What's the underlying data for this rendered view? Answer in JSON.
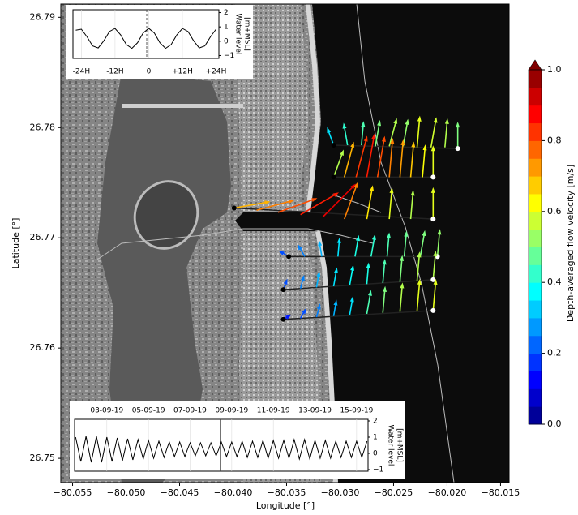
{
  "chart_data": [
    {
      "type": "vector",
      "xlabel": "Longitude [°]",
      "ylabel": "Latitude [°]",
      "xlim": [
        -80.0561,
        -80.0142
      ],
      "ylim": [
        26.7478,
        26.7912
      ],
      "xticks": [
        {
          "value": -80.055,
          "label": "−80.055"
        },
        {
          "value": -80.05,
          "label": "−80.050"
        },
        {
          "value": -80.045,
          "label": "−80.045"
        },
        {
          "value": -80.04,
          "label": "−80.040"
        },
        {
          "value": -80.035,
          "label": "−80.035"
        },
        {
          "value": -80.03,
          "label": "−80.030"
        },
        {
          "value": -80.025,
          "label": "−80.025"
        },
        {
          "value": -80.02,
          "label": "−80.020"
        },
        {
          "value": -80.015,
          "label": "−80.015"
        }
      ],
      "yticks": [
        26.75,
        26.76,
        26.77,
        26.78,
        26.79
      ],
      "colorbar": {
        "label": "Depth-averaged flow velocity [m/s]",
        "cmap": "jet",
        "lim": [
          0,
          1
        ],
        "ticks": [
          {
            "value": 0,
            "label": "0.0"
          },
          0.2,
          0.4,
          0.6,
          0.8,
          {
            "value": 1,
            "label": "1.0"
          }
        ]
      },
      "series": [
        {
          "x": [
            -80.0306,
            -80.0293,
            -80.028,
            -80.0267,
            -80.0254,
            -80.0241,
            -80.0228,
            -80.0215,
            -80.0202,
            -80.019
          ],
          "y": [
            26.7784,
            26.7784,
            26.7784,
            26.7783,
            26.7783,
            26.7783,
            26.7782,
            26.7782,
            26.7782,
            26.7781
          ],
          "values": [
            0.35,
            0.42,
            0.45,
            0.5,
            0.55,
            0.52,
            0.6,
            0.58,
            0.55,
            0.5
          ],
          "direction": [
            340,
            350,
            5,
            10,
            15,
            10,
            5,
            10,
            5,
            0
          ]
        },
        {
          "x": [
            -80.0306,
            -80.0296,
            -80.0285,
            -80.0275,
            -80.0265,
            -80.0254,
            -80.0244,
            -80.0234,
            -80.0223,
            -80.0213
          ],
          "y": [
            26.7755,
            26.7755,
            26.7755,
            26.7755,
            26.7755,
            26.7755,
            26.7755,
            26.7755,
            26.7755,
            26.7755
          ],
          "values": [
            0.55,
            0.7,
            0.82,
            0.85,
            0.8,
            0.75,
            0.72,
            0.68,
            0.62,
            0.6
          ],
          "direction": [
            20,
            15,
            15,
            10,
            10,
            5,
            5,
            5,
            5,
            0
          ]
        },
        {
          "x": [
            -80.0399,
            -80.0378,
            -80.0358,
            -80.0337,
            -80.0316,
            -80.0296,
            -80.0275,
            -80.0254,
            -80.0234,
            -80.0213
          ],
          "y": [
            26.7727,
            26.7725,
            26.7723,
            26.7721,
            26.7719,
            26.7717,
            26.7717,
            26.7717,
            26.7717,
            26.7717
          ],
          "values": [
            0.7,
            0.75,
            0.8,
            0.85,
            0.9,
            0.75,
            0.65,
            0.6,
            0.55,
            0.6
          ],
          "direction": [
            80,
            75,
            70,
            60,
            45,
            20,
            10,
            5,
            5,
            0
          ]
        },
        {
          "x": [
            -80.0348,
            -80.0333,
            -80.0317,
            -80.0302,
            -80.0286,
            -80.0271,
            -80.0256,
            -80.024,
            -80.0225,
            -80.0209
          ],
          "y": [
            26.7683,
            26.7683,
            26.7683,
            26.7683,
            26.7683,
            26.7683,
            26.7683,
            26.7683,
            26.7683,
            26.7683
          ],
          "values": [
            0.2,
            0.25,
            0.3,
            0.35,
            0.4,
            0.42,
            0.45,
            0.48,
            0.5,
            0.52
          ],
          "direction": [
            300,
            330,
            350,
            5,
            10,
            10,
            5,
            5,
            10,
            5
          ]
        },
        {
          "x": [
            -80.0353,
            -80.0337,
            -80.0322,
            -80.0306,
            -80.0291,
            -80.0275,
            -80.026,
            -80.0244,
            -80.0228,
            -80.0213
          ],
          "y": [
            26.7653,
            26.7654,
            26.7655,
            26.7656,
            26.7657,
            26.7658,
            26.7659,
            26.766,
            26.7661,
            26.7662
          ],
          "values": [
            0.2,
            0.25,
            0.3,
            0.35,
            0.38,
            0.4,
            0.45,
            0.5,
            0.55,
            0.55
          ],
          "direction": [
            20,
            15,
            10,
            10,
            10,
            5,
            5,
            5,
            5,
            5
          ]
        },
        {
          "x": [
            -80.0353,
            -80.0337,
            -80.0322,
            -80.0306,
            -80.0291,
            -80.0275,
            -80.026,
            -80.0244,
            -80.0228,
            -80.0213
          ],
          "y": [
            26.7626,
            26.7627,
            26.7628,
            26.7629,
            26.763,
            26.7631,
            26.7632,
            26.7633,
            26.7634,
            26.7634
          ],
          "values": [
            0.15,
            0.2,
            0.25,
            0.3,
            0.35,
            0.45,
            0.5,
            0.55,
            0.6,
            0.6
          ],
          "direction": [
            60,
            30,
            15,
            10,
            10,
            10,
            5,
            5,
            5,
            5
          ]
        }
      ]
    },
    {
      "type": "line",
      "ylabel": [
        "Water level",
        "[m+MSL]"
      ],
      "xlim": [
        -27,
        25
      ],
      "ylim": [
        -1.2,
        2.2
      ],
      "xticks": [
        {
          "value": -24,
          "label": "-24H"
        },
        {
          "value": -12,
          "label": "-12H"
        },
        0,
        {
          "value": 12,
          "label": "+12H"
        },
        {
          "value": 24,
          "label": "+24H"
        }
      ],
      "yticks": [
        {
          "value": -1,
          "label": "−1"
        },
        0,
        1,
        2
      ],
      "x": [
        -26,
        -24,
        -22,
        -20,
        -18,
        -16,
        -14,
        -12,
        -10,
        -8,
        -6,
        -4,
        -2,
        0,
        2,
        4,
        6,
        8,
        10,
        12,
        14,
        16,
        18,
        20,
        22,
        24
      ],
      "values": [
        0.77,
        0.84,
        0.31,
        -0.33,
        -0.47,
        0.03,
        0.68,
        0.89,
        0.44,
        -0.23,
        -0.5,
        -0.11,
        0.57,
        0.9,
        0.57,
        -0.11,
        -0.5,
        -0.23,
        0.44,
        0.89,
        0.68,
        0.03,
        -0.47,
        -0.33,
        0.31,
        0.84
      ],
      "color": "#000000"
    },
    {
      "type": "line",
      "ylabel": [
        "Water level",
        "[m+MSL]"
      ],
      "xlim": [
        1.45,
        15.55
      ],
      "ylim": [
        -1.1,
        2.1
      ],
      "xticks": [
        {
          "value": 3,
          "label": "03-09-19"
        },
        {
          "value": 5,
          "label": "05-09-19"
        },
        {
          "value": 7,
          "label": "07-09-19"
        },
        {
          "value": 9,
          "label": "09-09-19"
        },
        {
          "value": 11,
          "label": "11-09-19"
        },
        {
          "value": 13,
          "label": "13-09-19"
        },
        {
          "value": 15,
          "label": "15-09-19"
        }
      ],
      "yticks": [
        {
          "value": -1,
          "label": "−1"
        },
        0,
        1,
        2
      ],
      "x": [
        1.5,
        1.625,
        1.75,
        1.875,
        2,
        2.125,
        2.25,
        2.375,
        2.5,
        2.625,
        2.75,
        2.875,
        3,
        3.125,
        3.25,
        3.375,
        3.5,
        3.625,
        3.75,
        3.875,
        4,
        4.125,
        4.25,
        4.375,
        4.5,
        4.625,
        4.75,
        4.875,
        5,
        5.125,
        5.25,
        5.375,
        5.5,
        5.625,
        5.75,
        5.875,
        6,
        6.125,
        6.25,
        6.375,
        6.5,
        6.625,
        6.75,
        6.875,
        7,
        7.125,
        7.25,
        7.375,
        7.5,
        7.625,
        7.75,
        7.875,
        8,
        8.125,
        8.25,
        8.375,
        8.5,
        8.625,
        8.75,
        8.875,
        9,
        9.125,
        9.25,
        9.375,
        9.5,
        9.625,
        9.75,
        9.875,
        10,
        10.125,
        10.25,
        10.375,
        10.5,
        10.625,
        10.75,
        10.875,
        11,
        11.125,
        11.25,
        11.375,
        11.5,
        11.625,
        11.75,
        11.875,
        12,
        12.125,
        12.25,
        12.375,
        12.5,
        12.625,
        12.75,
        12.875,
        13,
        13.125,
        13.25,
        13.375,
        13.5,
        13.625,
        13.75,
        13.875,
        14,
        14.125,
        14.25,
        14.375,
        14.5,
        14.625,
        14.75,
        14.875,
        15,
        15.125,
        15.25,
        15.375,
        15.5
      ],
      "values": [
        1.0,
        0.25,
        -0.5,
        0.25,
        1.05,
        0.25,
        -0.55,
        0.25,
        1.05,
        0.25,
        -0.55,
        0.25,
        1.0,
        0.25,
        -0.5,
        0.25,
        0.95,
        0.25,
        -0.45,
        0.25,
        0.9,
        0.25,
        -0.4,
        0.25,
        0.85,
        0.25,
        -0.35,
        0.25,
        0.8,
        0.25,
        -0.3,
        0.25,
        0.75,
        0.25,
        -0.25,
        0.25,
        0.7,
        0.25,
        -0.2,
        0.25,
        0.7,
        0.25,
        -0.2,
        0.25,
        0.65,
        0.25,
        -0.15,
        0.25,
        0.65,
        0.25,
        -0.15,
        0.25,
        0.65,
        0.25,
        -0.15,
        0.25,
        0.7,
        0.25,
        -0.2,
        0.25,
        0.7,
        0.25,
        -0.2,
        0.25,
        0.75,
        0.25,
        -0.25,
        0.25,
        0.75,
        0.25,
        -0.25,
        0.25,
        0.8,
        0.25,
        -0.3,
        0.25,
        0.8,
        0.25,
        -0.3,
        0.25,
        0.8,
        0.25,
        -0.3,
        0.25,
        0.85,
        0.25,
        -0.35,
        0.25,
        0.85,
        0.25,
        -0.35,
        0.25,
        0.8,
        0.25,
        -0.3,
        0.25,
        0.8,
        0.25,
        -0.3,
        0.25,
        0.75,
        0.25,
        -0.25,
        0.25,
        0.75,
        0.25,
        -0.25,
        0.25,
        0.75,
        0.25,
        -0.25,
        0.25,
        0.75
      ],
      "color": "#000000"
    }
  ]
}
